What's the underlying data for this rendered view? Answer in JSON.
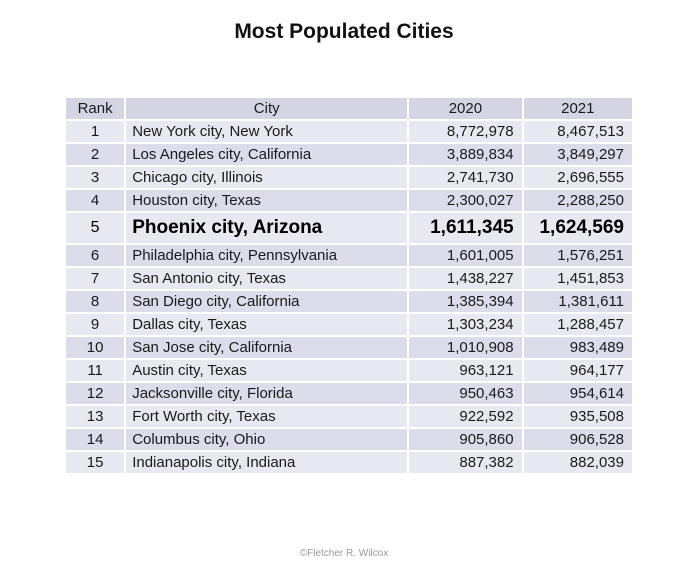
{
  "title": "Most Populated Cities",
  "table": {
    "headers": [
      "Rank",
      "City",
      "2020",
      "2021"
    ],
    "rows": [
      {
        "rank": "1",
        "city": "New York city, New York",
        "y2020": "8,772,978",
        "y2021": "8,467,513"
      },
      {
        "rank": "2",
        "city": "Los Angeles city, California",
        "y2020": "3,889,834",
        "y2021": "3,849,297"
      },
      {
        "rank": "3",
        "city": "Chicago city, Illinois",
        "y2020": "2,741,730",
        "y2021": "2,696,555"
      },
      {
        "rank": "4",
        "city": "Houston city, Texas",
        "y2020": "2,300,027",
        "y2021": "2,288,250"
      },
      {
        "rank": "5",
        "city": "Phoenix city, Arizona",
        "y2020": "1,611,345",
        "y2021": "1,624,569"
      },
      {
        "rank": "6",
        "city": "Philadelphia city, Pennsylvania",
        "y2020": "1,601,005",
        "y2021": "1,576,251"
      },
      {
        "rank": "7",
        "city": "San Antonio city, Texas",
        "y2020": "1,438,227",
        "y2021": "1,451,853"
      },
      {
        "rank": "8",
        "city": "San Diego city, California",
        "y2020": "1,385,394",
        "y2021": "1,381,611"
      },
      {
        "rank": "9",
        "city": "Dallas city, Texas",
        "y2020": "1,303,234",
        "y2021": "1,288,457"
      },
      {
        "rank": "10",
        "city": "San Jose city, California",
        "y2020": "1,010,908",
        "y2021": "983,489"
      },
      {
        "rank": "11",
        "city": "Austin city, Texas",
        "y2020": "963,121",
        "y2021": "964,177"
      },
      {
        "rank": "12",
        "city": "Jacksonville city, Florida",
        "y2020": "950,463",
        "y2021": "954,614"
      },
      {
        "rank": "13",
        "city": "Fort Worth city, Texas",
        "y2020": "922,592",
        "y2021": "935,508"
      },
      {
        "rank": "14",
        "city": "Columbus city, Ohio",
        "y2020": "905,860",
        "y2021": "906,528"
      },
      {
        "rank": "15",
        "city": "Indianapolis city, Indiana",
        "y2020": "887,382",
        "y2021": "882,039"
      }
    ]
  },
  "credit": "©Fletcher R. Wilcox",
  "colors": {
    "header_bg": "#d4d4e3",
    "row_bg": "#e8e8f1",
    "row_alt_bg": "#dcdcea"
  }
}
